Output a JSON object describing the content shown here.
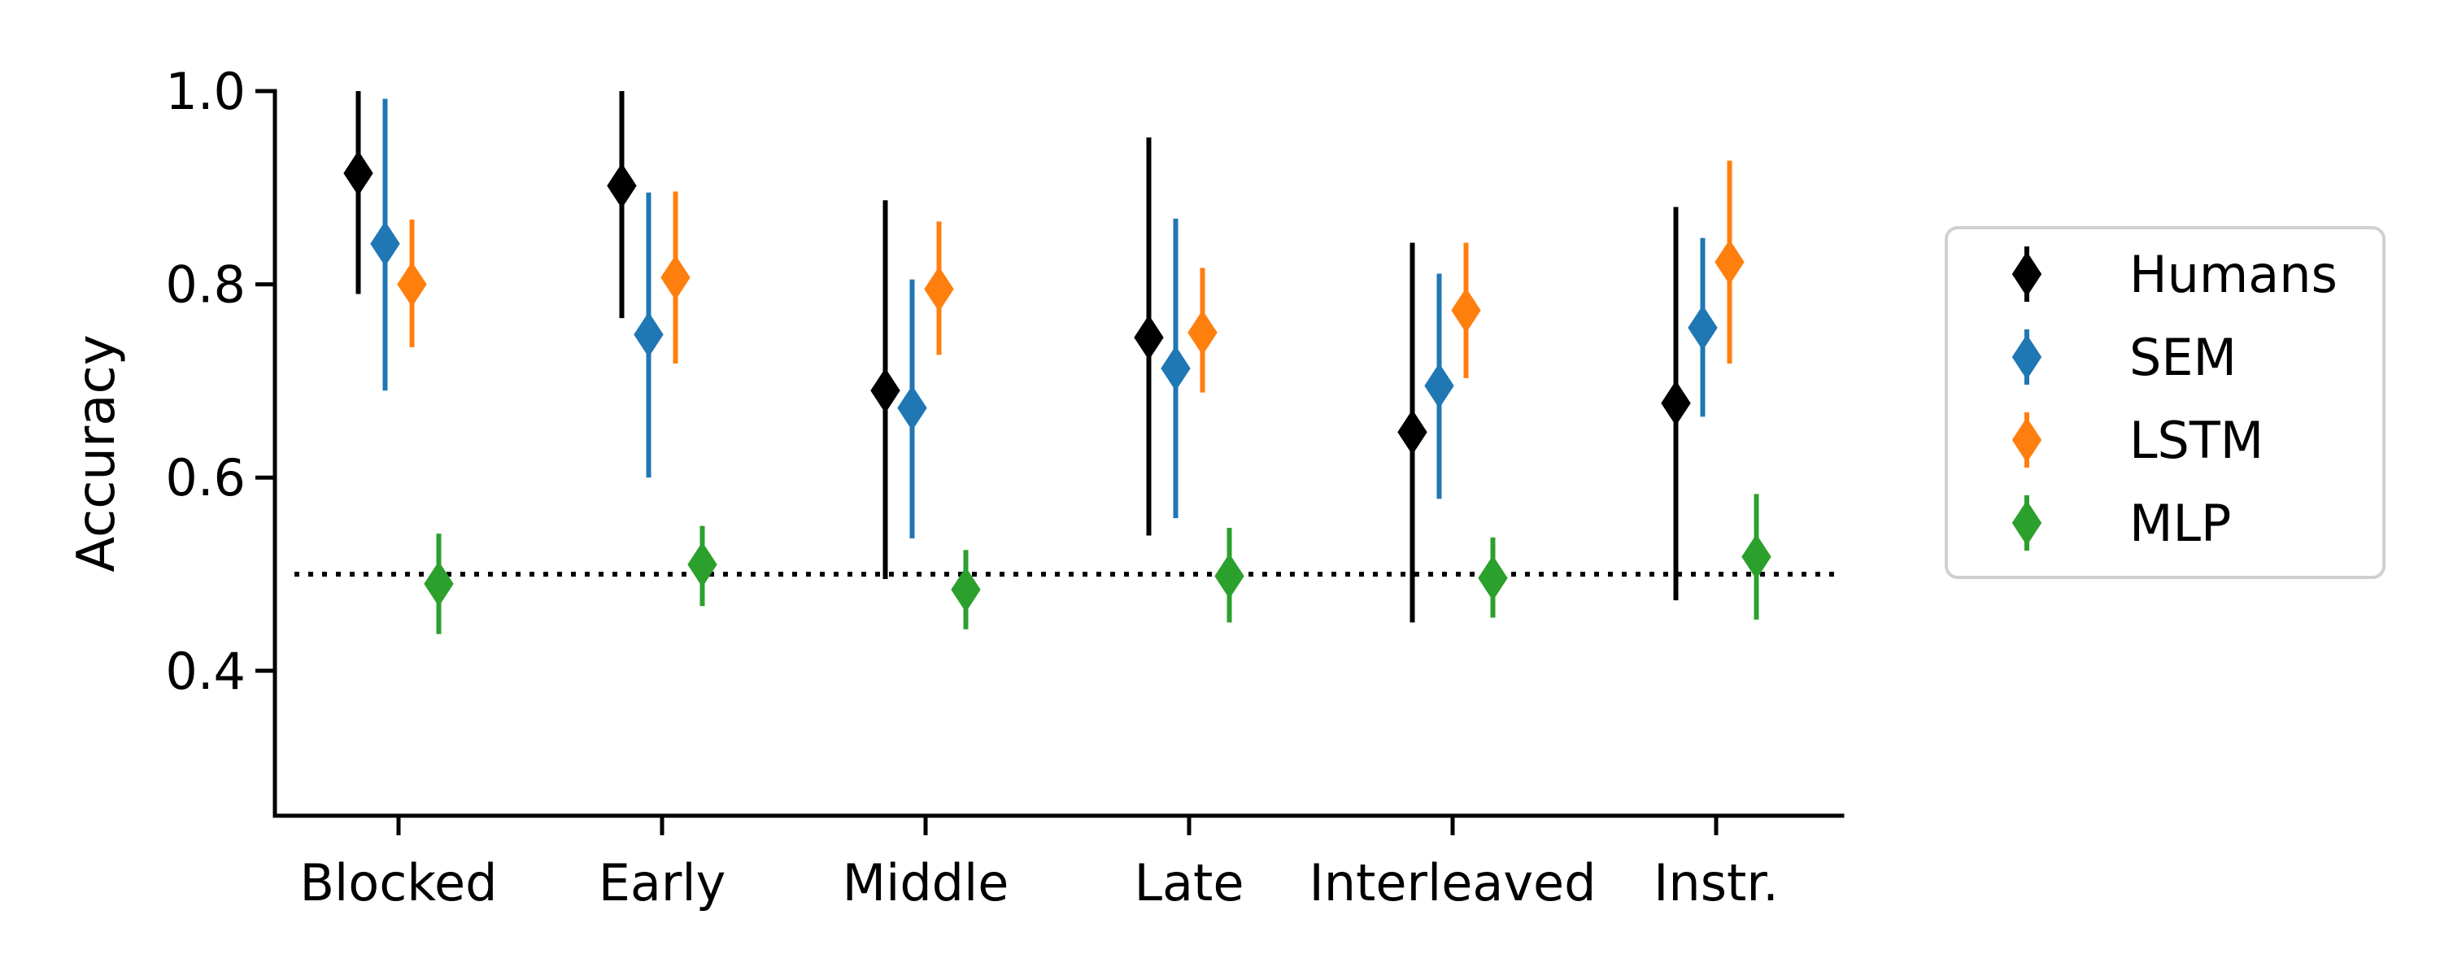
{
  "chart_data": {
    "type": "scatter",
    "subtype": "point-with-error-bars",
    "ylabel": "Accuracy",
    "xlabel": "",
    "categories": [
      "Blocked",
      "Early",
      "Middle",
      "Late",
      "Interleaved",
      "Instr."
    ],
    "ylim": [
      0.25,
      1.0
    ],
    "yticks": [
      0.4,
      0.6,
      0.8,
      1.0
    ],
    "ytick_labels": [
      "0.4",
      "0.6",
      "0.8",
      "1.0"
    ],
    "reference_line": {
      "y": 0.5,
      "style": "dotted",
      "color": "#000000"
    },
    "grid": false,
    "legend_position": "right",
    "series": [
      {
        "name": "Humans",
        "color": "#000000",
        "values": [
          0.915,
          0.902,
          0.69,
          0.745,
          0.647,
          0.677
        ],
        "lower": [
          0.79,
          0.765,
          0.495,
          0.54,
          0.45,
          0.473
        ],
        "upper": [
          1.0,
          1.0,
          0.887,
          0.952,
          0.843,
          0.88
        ]
      },
      {
        "name": "SEM",
        "color": "#1f77b4",
        "values": [
          0.842,
          0.748,
          0.672,
          0.713,
          0.695,
          0.755
        ],
        "lower": [
          0.69,
          0.6,
          0.537,
          0.558,
          0.578,
          0.663
        ],
        "upper": [
          0.992,
          0.895,
          0.805,
          0.868,
          0.811,
          0.848
        ]
      },
      {
        "name": "LSTM",
        "color": "#ff7f0e",
        "values": [
          0.8,
          0.807,
          0.795,
          0.75,
          0.773,
          0.823
        ],
        "lower": [
          0.735,
          0.718,
          0.727,
          0.688,
          0.703,
          0.718
        ],
        "upper": [
          0.867,
          0.896,
          0.865,
          0.817,
          0.843,
          0.928
        ]
      },
      {
        "name": "MLP",
        "color": "#2ca02c",
        "values": [
          0.49,
          0.51,
          0.484,
          0.498,
          0.496,
          0.518
        ],
        "lower": [
          0.438,
          0.467,
          0.443,
          0.45,
          0.455,
          0.453
        ],
        "upper": [
          0.542,
          0.55,
          0.525,
          0.548,
          0.538,
          0.583
        ]
      }
    ]
  }
}
